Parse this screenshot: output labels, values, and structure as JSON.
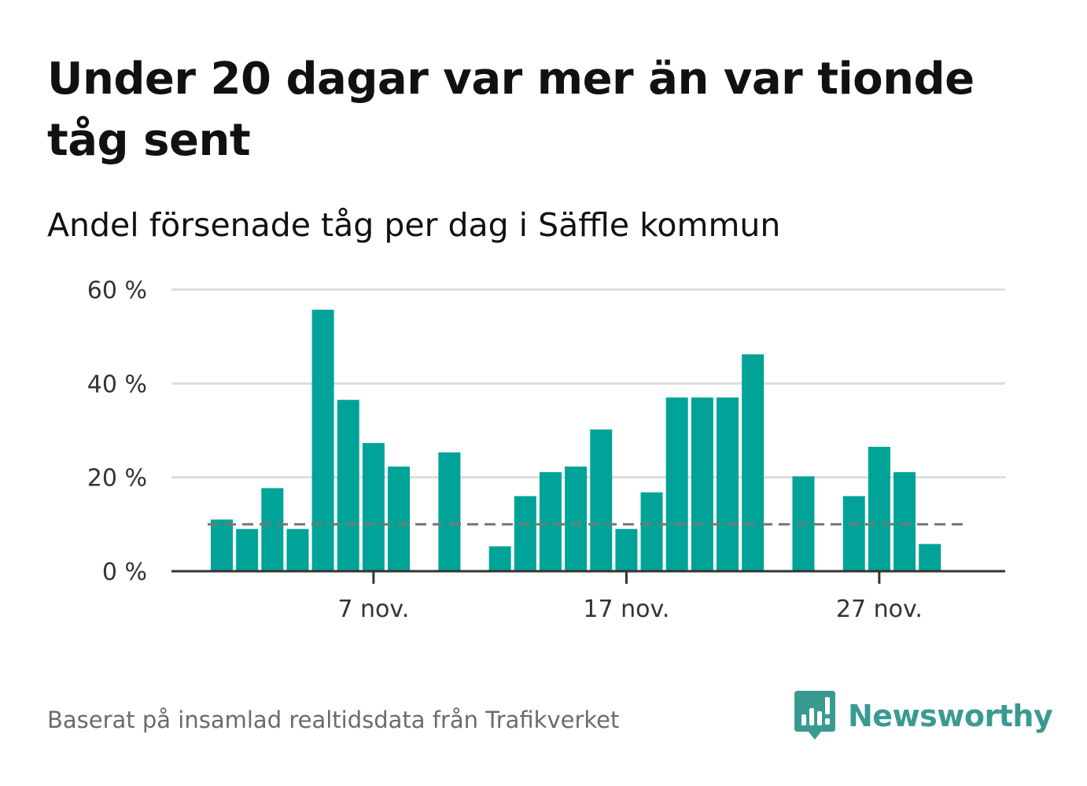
{
  "title": "Under 20 dagar var mer än var tionde tåg sent",
  "subtitle": "Andel försenade tåg per dag i Säffle kommun",
  "footer": "Baserat på insamlad realtidsdata från Trafikverket",
  "brand": {
    "name": "Newsworthy",
    "color": "#3a9a92",
    "icon": "newsworthy-chart-bubble-icon"
  },
  "colors": {
    "bar": "#00a398",
    "grid": "#dddddd",
    "axis": "#333333",
    "reference_line": "#777777"
  },
  "chart_data": {
    "type": "bar",
    "x_unit": "day of November",
    "x": [
      1,
      2,
      3,
      4,
      5,
      6,
      7,
      8,
      9,
      10,
      11,
      12,
      13,
      14,
      15,
      16,
      17,
      18,
      19,
      20,
      21,
      22,
      23,
      24,
      25,
      26,
      27,
      28,
      29
    ],
    "values": [
      11,
      9,
      17.7,
      9,
      55.7,
      36.5,
      27.3,
      22.3,
      null,
      25.3,
      null,
      5.3,
      16,
      21.1,
      22.3,
      30.2,
      9,
      16.8,
      37,
      37,
      37,
      46.2,
      null,
      20.2,
      null,
      16,
      26.5,
      21.1,
      5.8
    ],
    "reference_line": {
      "value": 10,
      "style": "dashed"
    },
    "ylim": [
      0,
      60
    ],
    "y_ticks": [
      {
        "value": 0,
        "label": "0 %"
      },
      {
        "value": 20,
        "label": "20 %"
      },
      {
        "value": 40,
        "label": "40 %"
      },
      {
        "value": 60,
        "label": "60 %"
      }
    ],
    "x_ticks": [
      {
        "value": 7,
        "label": "7 nov."
      },
      {
        "value": 17,
        "label": "17 nov."
      },
      {
        "value": 27,
        "label": "27 nov."
      }
    ],
    "grid": true,
    "legend": false
  }
}
